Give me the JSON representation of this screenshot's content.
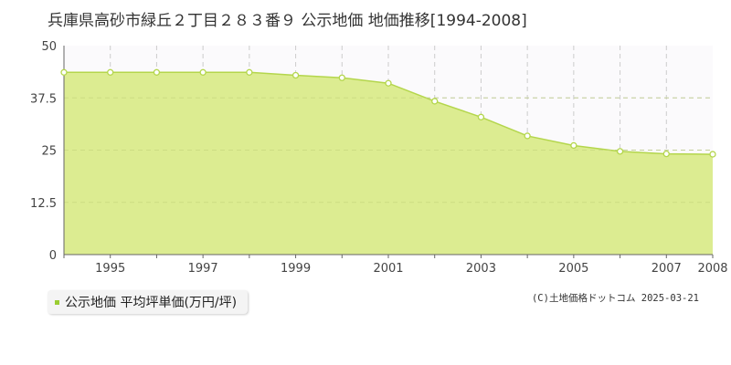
{
  "title": "兵庫県高砂市緑丘２丁目２８３番９ 公示地価 地価推移[1994-2008]",
  "legend": {
    "label": "公示地価 平均坪単価(万円/坪)"
  },
  "copyright": "(C)土地価格ドットコム 2025-03-21",
  "colors": {
    "area_fill": "#dcec91",
    "line": "#b4d64c",
    "marker_fill": "#ffffff",
    "legend_marker": "#9acd32",
    "grid": "#cccccc",
    "axis": "#666666"
  },
  "chart_data": {
    "type": "area",
    "x": [
      1994,
      1995,
      1996,
      1997,
      1998,
      1999,
      2000,
      2001,
      2002,
      2003,
      2004,
      2005,
      2006,
      2007,
      2008
    ],
    "series": [
      {
        "name": "公示地価 平均坪単価(万円/坪)",
        "values": [
          43.6,
          43.6,
          43.6,
          43.6,
          43.6,
          42.9,
          42.3,
          41.0,
          36.7,
          32.9,
          28.4,
          26.1,
          24.7,
          24.1,
          24.0
        ]
      }
    ],
    "xlim": [
      1994,
      2008
    ],
    "ylim": [
      0,
      50
    ],
    "yticks": [
      "0",
      "12.5",
      "25",
      "37.5",
      "50"
    ],
    "xticks": [
      "1995",
      "1997",
      "1999",
      "2001",
      "2003",
      "2005",
      "2007",
      "2008"
    ],
    "grid": true
  }
}
